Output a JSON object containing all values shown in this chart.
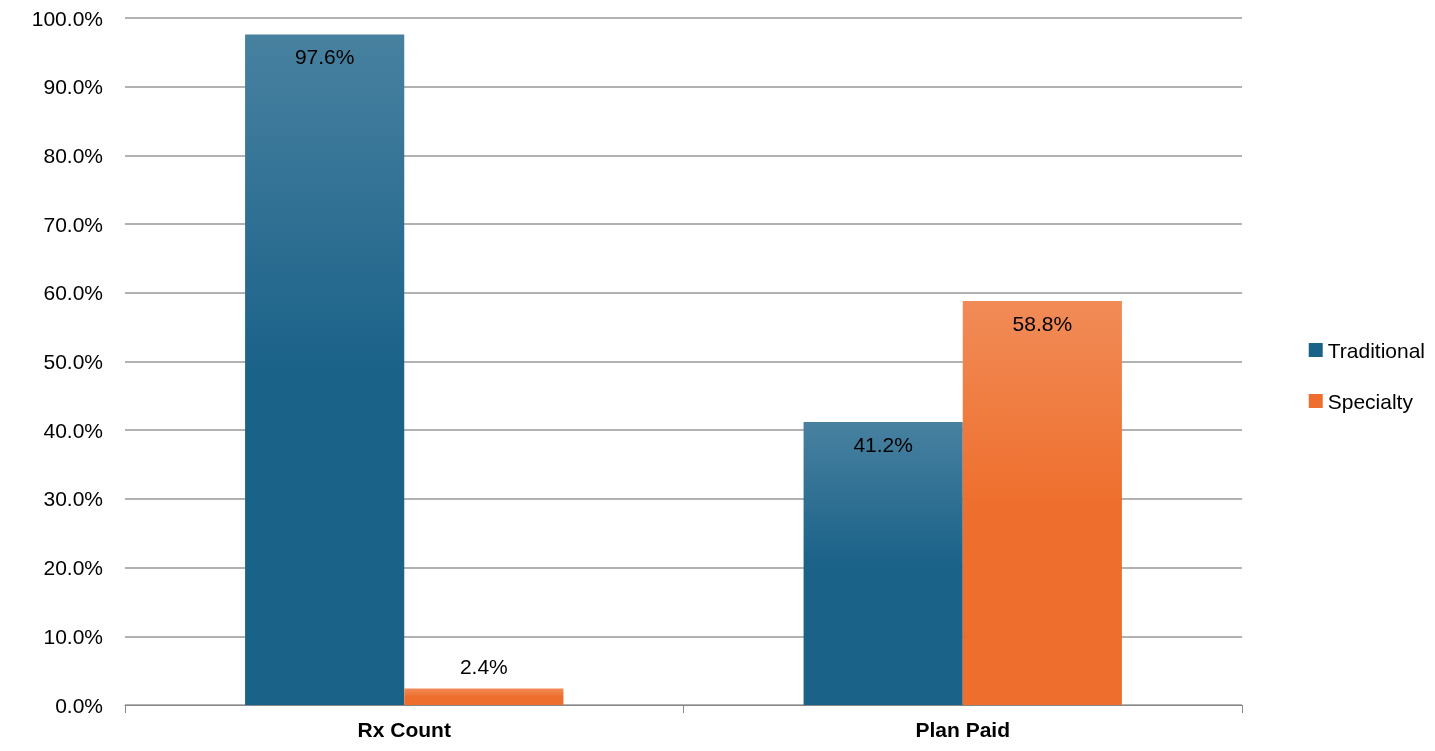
{
  "chart_data": {
    "type": "bar",
    "categories": [
      "Rx Count",
      "Plan Paid"
    ],
    "series": [
      {
        "name": "Traditional",
        "color": "#1b6289",
        "values": [
          97.6,
          41.2
        ],
        "value_labels": [
          "97.6%",
          "41.2%"
        ]
      },
      {
        "name": "Specialty",
        "color": "#ee6f2d",
        "values": [
          2.4,
          58.8
        ],
        "value_labels": [
          "2.4%",
          "58.8%"
        ]
      }
    ],
    "ylim": [
      0,
      100
    ],
    "yticks": [
      {
        "value": 0,
        "label": "0.0%"
      },
      {
        "value": 10,
        "label": "10.0%"
      },
      {
        "value": 20,
        "label": "20.0%"
      },
      {
        "value": 30,
        "label": "30.0%"
      },
      {
        "value": 40,
        "label": "40.0%"
      },
      {
        "value": 50,
        "label": "50.0%"
      },
      {
        "value": 60,
        "label": "60.0%"
      },
      {
        "value": 70,
        "label": "70.0%"
      },
      {
        "value": 80,
        "label": "80.0%"
      },
      {
        "value": 90,
        "label": "90.0%"
      },
      {
        "value": 100,
        "label": "100.0%"
      }
    ],
    "grid": "y",
    "legend": "right"
  }
}
